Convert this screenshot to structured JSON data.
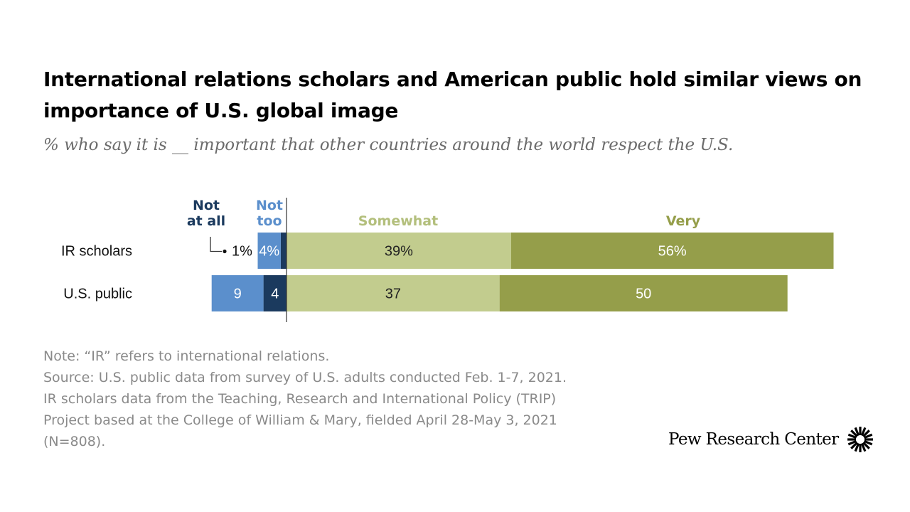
{
  "title": "International relations scholars and American public hold similar views on importance of U.S. global image",
  "subtitle": "% who say it is __ important that other countries around the world respect the U.S.",
  "chart_data": {
    "type": "bar",
    "orientation": "horizontal",
    "stacked": "diverging",
    "categories": [
      "IR scholars",
      "U.S. public"
    ],
    "series": [
      {
        "name": "Not at all",
        "header_lines": [
          "Not",
          "at all"
        ],
        "values": [
          1,
          4
        ],
        "labels": [
          "1%",
          "4"
        ],
        "color": "#1b3a5e",
        "text_color": "#ffffff",
        "side": "negative"
      },
      {
        "name": "Not too",
        "header_lines": [
          "Not",
          "too"
        ],
        "values": [
          4,
          9
        ],
        "labels": [
          "4%",
          "9"
        ],
        "color": "#5b8fcc",
        "text_color": "#ffffff",
        "side": "negative"
      },
      {
        "name": "Somewhat",
        "header_lines": [
          "Somewhat"
        ],
        "values": [
          39,
          37
        ],
        "labels": [
          "39%",
          "37"
        ],
        "color": "#c2cc8e",
        "text_color": "#222222",
        "side": "positive"
      },
      {
        "name": "Very",
        "header_lines": [
          "Very"
        ],
        "values": [
          56,
          50
        ],
        "labels": [
          "56%",
          "50"
        ],
        "color": "#959e4a",
        "text_color": "#ffffff",
        "side": "positive"
      }
    ],
    "header_colors": [
      "#1b3a5e",
      "#5b8fcc",
      "#b3bf7c",
      "#959e4a"
    ],
    "grid": false,
    "legend": "column headers above bars"
  },
  "note": {
    "lines": [
      "Note: “IR” refers to international relations.",
      "Source: U.S. public data from survey of U.S. adults conducted Feb. 1-7, 2021. IR scholars data from the Teaching, Research and International Policy (TRIP) Project based at the College of William & Mary, fielded April 28-May 3, 2021 (N=808)."
    ]
  },
  "branding": {
    "name": "Pew Research Center"
  }
}
